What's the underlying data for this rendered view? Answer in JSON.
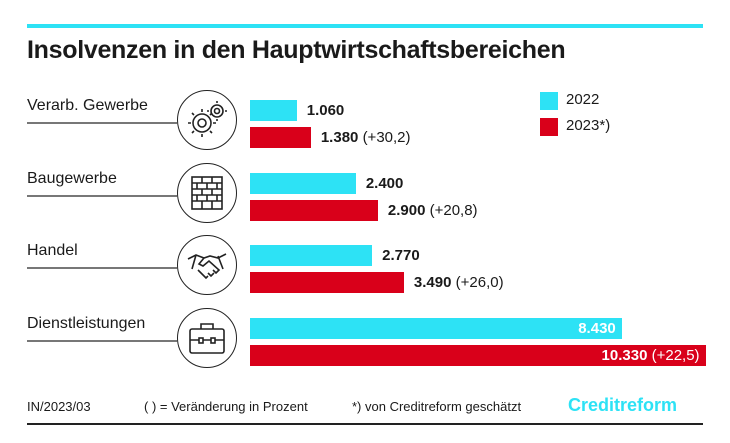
{
  "title": "Insolvenzen in den Hauptwirtschaftsbereichen",
  "colors": {
    "y2022": "#2de2f5",
    "y2023": "#d9001a"
  },
  "chart_data": {
    "type": "bar",
    "orientation": "horizontal",
    "title": "Insolvenzen in den Hauptwirtschaftsbereichen",
    "categories": [
      "Verarb. Gewerbe",
      "Baugewerbe",
      "Handel",
      "Dienstleistungen"
    ],
    "icons": [
      "gears-icon",
      "brick-wall-icon",
      "handshake-icon",
      "briefcase-icon"
    ],
    "series": [
      {
        "name": "2022",
        "values": [
          1060,
          2400,
          2770,
          8430
        ],
        "labels": [
          "1.060",
          "2.400",
          "2.770",
          "8.430"
        ]
      },
      {
        "name": "2023*)",
        "values": [
          1380,
          2900,
          3490,
          10330
        ],
        "labels": [
          "1.380",
          "2.900",
          "3.490",
          "10.330"
        ],
        "changes": [
          "(+30,2)",
          "(+20,8)",
          "(+26,0)",
          "(+22,5)"
        ]
      }
    ],
    "legend": [
      "2022",
      "2023*)"
    ],
    "legend_position": "top-right"
  },
  "footer": {
    "source": "IN/2023/03",
    "note1": "( ) = Veränderung in Prozent",
    "note2": "*) von Creditreform geschätzt",
    "brand": "Creditreform"
  }
}
